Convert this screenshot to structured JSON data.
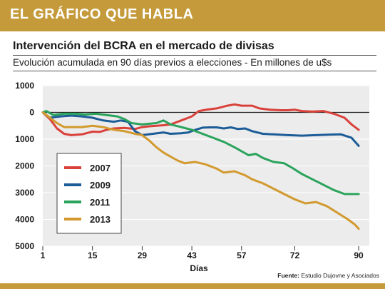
{
  "header": {
    "banner_title": "EL GRÁFICO QUE HABLA",
    "banner_color": "#c49a3a"
  },
  "footer": {
    "source_label": "Fuente:",
    "source_text": "Estudio Dujovne y Asociados"
  },
  "chart_data": {
    "type": "line",
    "title": "Intervención del BCRA en el mercado de divisas",
    "subtitle": "Evolución acumulada en 90 días previos a elecciones - En millones de u$s",
    "xlabel": "Días",
    "ylabel": "",
    "x_ticks": [
      1,
      15,
      29,
      43,
      57,
      72,
      90
    ],
    "y_ticks": [
      1000,
      0,
      -1000,
      -2000,
      -3000,
      -4000,
      -5000
    ],
    "y_tick_labels": [
      "1000",
      "0",
      "1000",
      "2000",
      "3000",
      "4000",
      "5000"
    ],
    "xlim": [
      1,
      93
    ],
    "ylim": [
      -5000,
      1000
    ],
    "grid": "horizontal",
    "legend_position": "left-bottom",
    "series": [
      {
        "name": "2007",
        "color": "#d9413a",
        "points": [
          [
            1,
            0
          ],
          [
            3,
            -250
          ],
          [
            5,
            -600
          ],
          [
            7,
            -800
          ],
          [
            9,
            -850
          ],
          [
            12,
            -820
          ],
          [
            15,
            -720
          ],
          [
            17,
            -730
          ],
          [
            19,
            -650
          ],
          [
            21,
            -600
          ],
          [
            24,
            -580
          ],
          [
            27,
            -620
          ],
          [
            29,
            -550
          ],
          [
            31,
            -520
          ],
          [
            33,
            -500
          ],
          [
            35,
            -480
          ],
          [
            37,
            -450
          ],
          [
            40,
            -300
          ],
          [
            43,
            -150
          ],
          [
            45,
            50
          ],
          [
            47,
            100
          ],
          [
            50,
            150
          ],
          [
            53,
            250
          ],
          [
            55,
            300
          ],
          [
            57,
            250
          ],
          [
            60,
            250
          ],
          [
            62,
            150
          ],
          [
            65,
            100
          ],
          [
            68,
            80
          ],
          [
            70,
            80
          ],
          [
            72,
            100
          ],
          [
            74,
            50
          ],
          [
            77,
            30
          ],
          [
            80,
            50
          ],
          [
            83,
            -50
          ],
          [
            86,
            -200
          ],
          [
            88,
            -450
          ],
          [
            90,
            -650
          ]
        ]
      },
      {
        "name": "2009",
        "color": "#1c5c97",
        "points": [
          [
            1,
            0
          ],
          [
            3,
            -200
          ],
          [
            6,
            -150
          ],
          [
            9,
            -120
          ],
          [
            12,
            -150
          ],
          [
            15,
            -200
          ],
          [
            18,
            -300
          ],
          [
            21,
            -350
          ],
          [
            23,
            -300
          ],
          [
            25,
            -350
          ],
          [
            27,
            -700
          ],
          [
            29,
            -850
          ],
          [
            32,
            -800
          ],
          [
            35,
            -750
          ],
          [
            37,
            -800
          ],
          [
            40,
            -780
          ],
          [
            42,
            -750
          ],
          [
            44,
            -650
          ],
          [
            46,
            -570
          ],
          [
            48,
            -560
          ],
          [
            50,
            -560
          ],
          [
            52,
            -600
          ],
          [
            54,
            -560
          ],
          [
            56,
            -620
          ],
          [
            58,
            -600
          ],
          [
            60,
            -700
          ],
          [
            63,
            -800
          ],
          [
            66,
            -820
          ],
          [
            70,
            -850
          ],
          [
            74,
            -870
          ],
          [
            78,
            -850
          ],
          [
            82,
            -830
          ],
          [
            85,
            -820
          ],
          [
            88,
            -950
          ],
          [
            90,
            -1250
          ]
        ]
      },
      {
        "name": "2011",
        "color": "#2aa35c",
        "points": [
          [
            1,
            0
          ],
          [
            2,
            50
          ],
          [
            4,
            -100
          ],
          [
            7,
            -50
          ],
          [
            10,
            -50
          ],
          [
            13,
            -80
          ],
          [
            16,
            -50
          ],
          [
            19,
            -100
          ],
          [
            22,
            -150
          ],
          [
            24,
            -250
          ],
          [
            26,
            -400
          ],
          [
            29,
            -450
          ],
          [
            33,
            -400
          ],
          [
            35,
            -300
          ],
          [
            37,
            -450
          ],
          [
            40,
            -550
          ],
          [
            43,
            -650
          ],
          [
            46,
            -800
          ],
          [
            49,
            -950
          ],
          [
            52,
            -1100
          ],
          [
            55,
            -1300
          ],
          [
            57,
            -1450
          ],
          [
            59,
            -1600
          ],
          [
            61,
            -1550
          ],
          [
            63,
            -1700
          ],
          [
            66,
            -1850
          ],
          [
            69,
            -1900
          ],
          [
            71,
            -2050
          ],
          [
            74,
            -2300
          ],
          [
            77,
            -2500
          ],
          [
            80,
            -2700
          ],
          [
            83,
            -2900
          ],
          [
            86,
            -3050
          ],
          [
            88,
            -3050
          ],
          [
            90,
            -3050
          ]
        ]
      },
      {
        "name": "2013",
        "color": "#d29a2e",
        "points": [
          [
            1,
            0
          ],
          [
            3,
            -200
          ],
          [
            5,
            -400
          ],
          [
            7,
            -550
          ],
          [
            9,
            -550
          ],
          [
            12,
            -550
          ],
          [
            15,
            -500
          ],
          [
            18,
            -550
          ],
          [
            21,
            -650
          ],
          [
            24,
            -700
          ],
          [
            27,
            -800
          ],
          [
            29,
            -850
          ],
          [
            31,
            -1050
          ],
          [
            33,
            -1300
          ],
          [
            35,
            -1500
          ],
          [
            37,
            -1650
          ],
          [
            39,
            -1800
          ],
          [
            41,
            -1900
          ],
          [
            44,
            -1850
          ],
          [
            47,
            -1950
          ],
          [
            50,
            -2100
          ],
          [
            52,
            -2250
          ],
          [
            55,
            -2200
          ],
          [
            58,
            -2350
          ],
          [
            60,
            -2500
          ],
          [
            63,
            -2650
          ],
          [
            66,
            -2850
          ],
          [
            69,
            -3050
          ],
          [
            72,
            -3250
          ],
          [
            75,
            -3400
          ],
          [
            78,
            -3350
          ],
          [
            81,
            -3500
          ],
          [
            84,
            -3750
          ],
          [
            87,
            -4000
          ],
          [
            89,
            -4200
          ],
          [
            90,
            -4350
          ]
        ]
      }
    ]
  }
}
